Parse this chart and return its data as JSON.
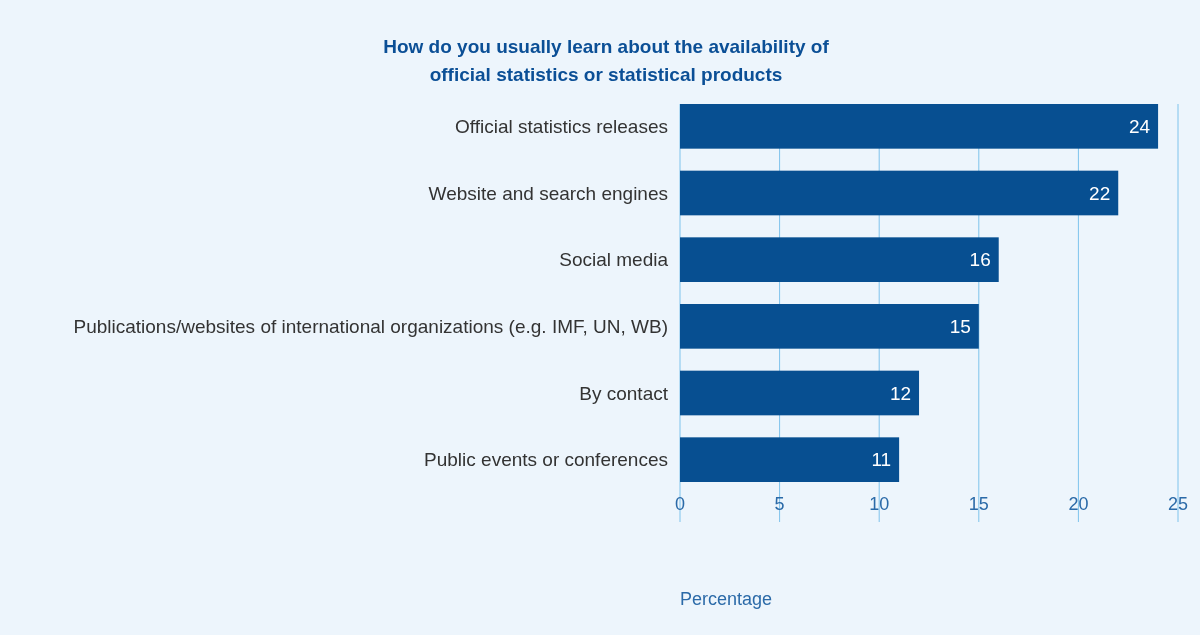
{
  "chart_data": {
    "type": "bar",
    "orientation": "horizontal",
    "title": "How do you usually learn about the availability of official statistics or statistical products",
    "xlabel": "Percentage",
    "categories": [
      "Official statistics releases",
      "Website and search engines",
      "Social media",
      "Publications/websites of international organizations (e.g. IMF, UN, WB)",
      "By contact",
      "Public events or conferences"
    ],
    "values": [
      24,
      22,
      16,
      15,
      12,
      11
    ],
    "color": "#074f91",
    "xlim": [
      0,
      25
    ],
    "xticks": [
      0,
      5,
      10,
      15,
      20,
      25
    ],
    "grid": "x",
    "data_labels": true
  }
}
